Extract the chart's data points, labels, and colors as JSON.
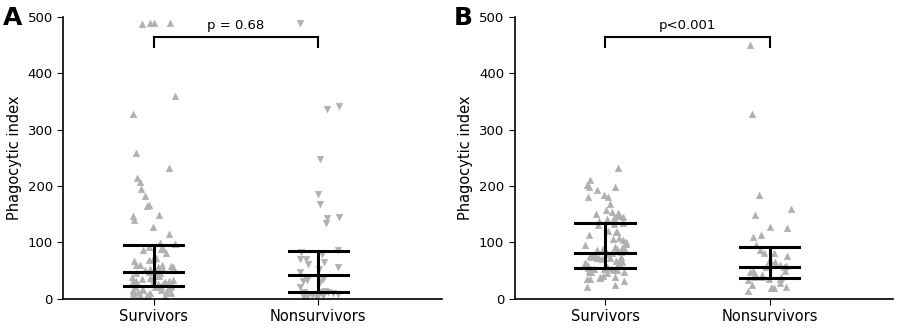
{
  "panel_A_label": "A",
  "panel_B_label": "B",
  "ylabel": "Phagocytic index",
  "xlabel_1": "Survivors",
  "xlabel_2": "Nonsurvivors",
  "ylim": [
    0,
    500
  ],
  "yticks": [
    0,
    100,
    200,
    300,
    400,
    500
  ],
  "pval_A": "p = 0.68",
  "pval_B": "p<0.001",
  "marker_color": "#b0b0b0",
  "bar_color": "#000000",
  "panel_A_surv_median": 40,
  "panel_A_surv_q1": 15,
  "panel_A_surv_q3": 82,
  "panel_A_nonsurv_median": 40,
  "panel_A_nonsurv_q1": 15,
  "panel_A_nonsurv_q3": 95,
  "panel_B_surv_median": 90,
  "panel_B_surv_q1": 72,
  "panel_B_surv_q3": 120,
  "panel_B_nonsurv_median": 55,
  "panel_B_nonsurv_q1": 35,
  "panel_B_nonsurv_q3": 100,
  "seed_A_surv": 10,
  "seed_A_nonsurv": 20,
  "seed_B_surv": 30,
  "seed_B_nonsurv": 40,
  "n_surv": 82,
  "n_nonsurv": 38
}
